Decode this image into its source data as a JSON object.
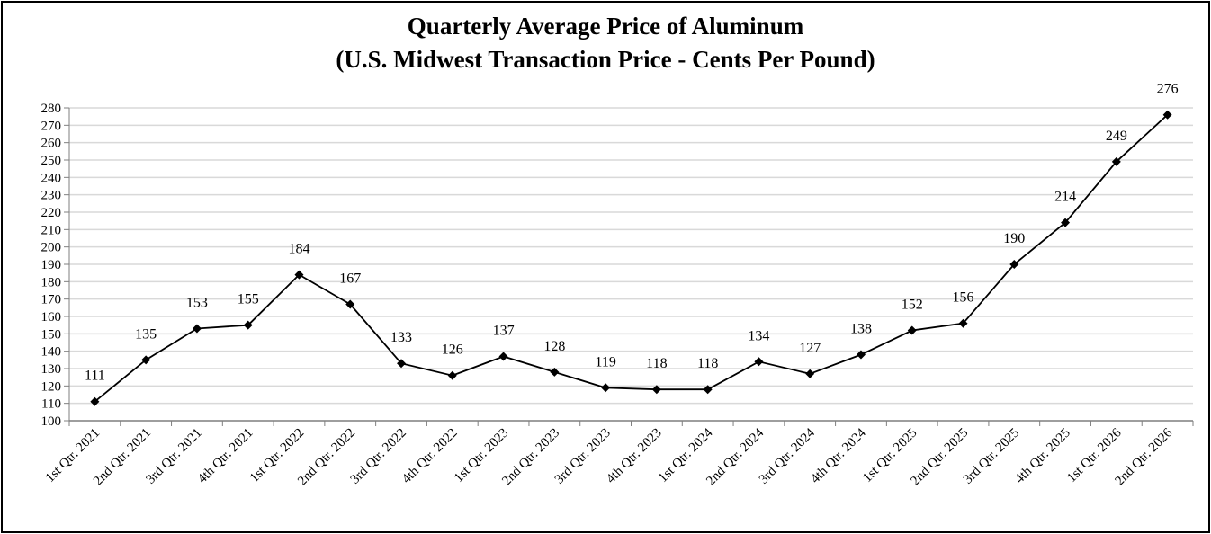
{
  "chart_data": {
    "type": "line",
    "title": "Quarterly Average Price of Aluminum",
    "subtitle": "(U.S. Midwest Transaction Price - Cents Per Pound)",
    "xlabel": "",
    "ylabel": "",
    "ylim": [
      100,
      280
    ],
    "ytick_step": 10,
    "grid": true,
    "legend": "none",
    "marker": "diamond",
    "line_color": "#000000",
    "categories": [
      "1st Qtr. 2021",
      "2nd Qtr. 2021",
      "3rd Qtr. 2021",
      "4th Qtr. 2021",
      "1st Qtr. 2022",
      "2nd Qtr. 2022",
      "3rd Qtr. 2022",
      "4th Qtr. 2022",
      "1st Qtr. 2023",
      "2nd Qtr. 2023",
      "3rd Qtr. 2023",
      "4th Qtr. 2023",
      "1st Qtr. 2024",
      "2nd Qtr. 2024",
      "3rd Qtr. 2024",
      "4th Qtr. 2024",
      "1st Qtr. 2025",
      "2nd Qtr. 2025",
      "3rd Qtr. 2025",
      "4th Qtr. 2025",
      "1st Qtr. 2026",
      "2nd Qtr. 2026"
    ],
    "values": [
      111,
      135,
      153,
      155,
      184,
      167,
      133,
      126,
      137,
      128,
      119,
      118,
      118,
      134,
      127,
      138,
      152,
      156,
      190,
      214,
      249,
      276
    ]
  }
}
